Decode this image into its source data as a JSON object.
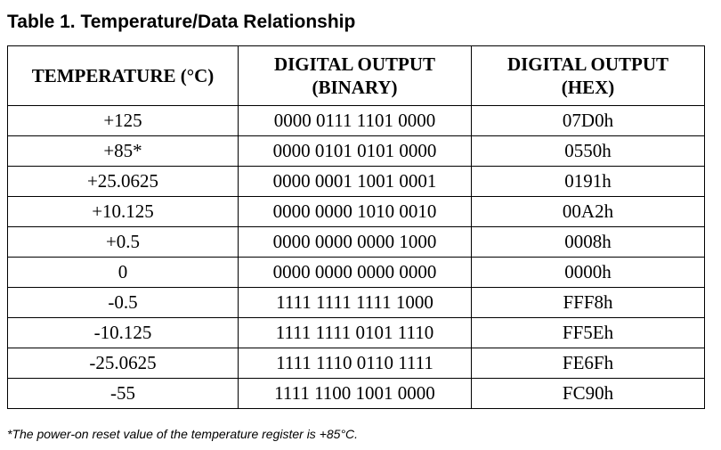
{
  "title": "Table 1. Temperature/Data Relationship",
  "headers": {
    "temperature": "TEMPERATURE (°C)",
    "binary_line1": "DIGITAL OUTPUT",
    "binary_line2": "(BINARY)",
    "hex_line1": "DIGITAL OUTPUT",
    "hex_line2": "(HEX)"
  },
  "rows": [
    {
      "temperature": "+125",
      "binary": "0000 0111 1101 0000",
      "hex": "07D0h"
    },
    {
      "temperature": "+85*",
      "binary": "0000 0101 0101 0000",
      "hex": "0550h"
    },
    {
      "temperature": "+25.0625",
      "binary": "0000 0001 1001 0001",
      "hex": "0191h"
    },
    {
      "temperature": "+10.125",
      "binary": "0000 0000 1010 0010",
      "hex": "00A2h"
    },
    {
      "temperature": "+0.5",
      "binary": "0000 0000 0000 1000",
      "hex": "0008h"
    },
    {
      "temperature": "0",
      "binary": "0000 0000 0000 0000",
      "hex": "0000h"
    },
    {
      "temperature": "-0.5",
      "binary": "1111 1111 1111 1000",
      "hex": "FFF8h"
    },
    {
      "temperature": "-10.125",
      "binary": "1111 1111 0101 1110",
      "hex": "FF5Eh"
    },
    {
      "temperature": "-25.0625",
      "binary": "1111 1110 0110 1111",
      "hex": "FE6Fh"
    },
    {
      "temperature": "-55",
      "binary": "1111 1100 1001 0000",
      "hex": "FC90h"
    }
  ],
  "footnote": "*The power-on reset value of the temperature register is +85°C."
}
